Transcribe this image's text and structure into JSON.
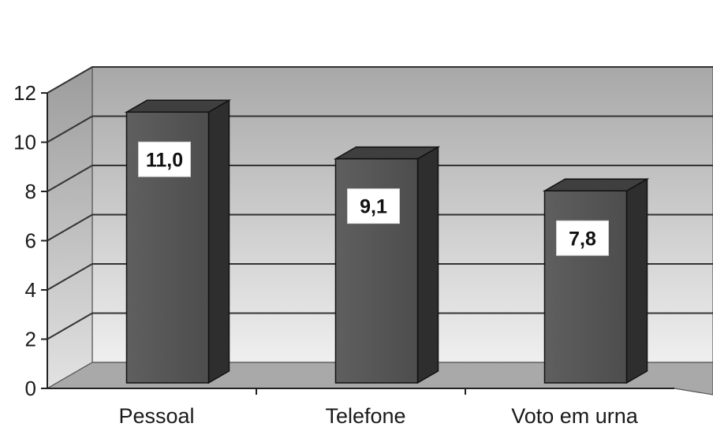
{
  "chart_data": {
    "type": "bar",
    "categories": [
      "Pessoal",
      "Telefone",
      "Voto em urna"
    ],
    "values": [
      11.0,
      9.1,
      7.8
    ],
    "value_labels": [
      "11,0",
      "9,1",
      "7,8"
    ],
    "y_ticks": [
      "0",
      "2",
      "4",
      "6",
      "8",
      "10",
      "12"
    ],
    "ylim": [
      0,
      12
    ],
    "grid": true,
    "legend": "none",
    "three_d": true,
    "colors": {
      "bar_front": "#5a5a5a",
      "bar_side": "#2e2e2e",
      "bar_top": "#3f3f3f",
      "wall": "#d4d4d4",
      "floor": "#a9a9a9",
      "gridline": "#333333"
    }
  }
}
